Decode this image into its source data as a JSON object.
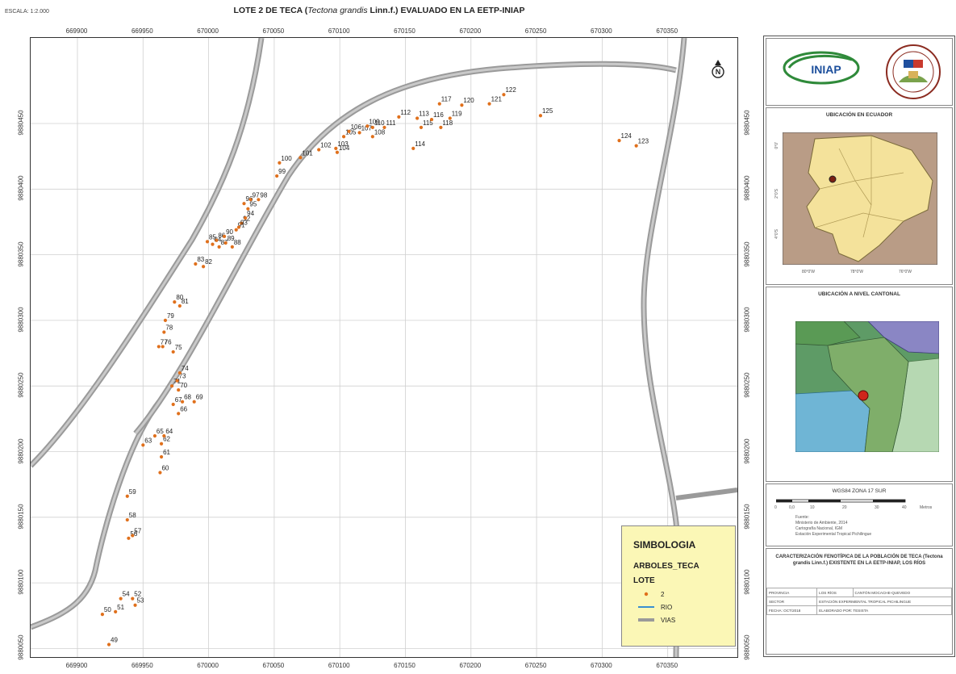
{
  "header": {
    "scale": "ESCALA: 1:2.000",
    "title_pre": "LOTE 2 DE TECA (",
    "title_species": "Tectona grandis",
    "title_post": " Linn.f.) EVALUADO EN LA EETP-INIAP"
  },
  "map": {
    "x_ticks": [
      "669900",
      "669950",
      "670000",
      "670050",
      "670100",
      "670150",
      "670200",
      "670250",
      "670300",
      "670350"
    ],
    "y_ticks": [
      "9880450",
      "9880400",
      "9880350",
      "9880300",
      "9880250",
      "9880200",
      "9880150",
      "9880100",
      "9880050"
    ],
    "north_symbol": "N",
    "trees": [
      {
        "id": "49",
        "x": 669924,
        "y": 9880053
      },
      {
        "id": "50",
        "x": 669919,
        "y": 9880076
      },
      {
        "id": "51",
        "x": 669929,
        "y": 9880078
      },
      {
        "id": "52",
        "x": 669942,
        "y": 9880088
      },
      {
        "id": "53",
        "x": 669944,
        "y": 9880083
      },
      {
        "id": "54",
        "x": 669933,
        "y": 9880088
      },
      {
        "id": "56",
        "x": 669939,
        "y": 9880134
      },
      {
        "id": "57",
        "x": 669942,
        "y": 9880136
      },
      {
        "id": "58",
        "x": 669938,
        "y": 9880148
      },
      {
        "id": "59",
        "x": 669938,
        "y": 9880166
      },
      {
        "id": "60",
        "x": 669963,
        "y": 9880184
      },
      {
        "id": "61",
        "x": 669964,
        "y": 9880196
      },
      {
        "id": "62",
        "x": 669964,
        "y": 9880206
      },
      {
        "id": "63",
        "x": 669950,
        "y": 9880205
      },
      {
        "id": "64",
        "x": 669966,
        "y": 9880212
      },
      {
        "id": "65",
        "x": 669959,
        "y": 9880212
      },
      {
        "id": "66",
        "x": 669977,
        "y": 9880229
      },
      {
        "id": "67",
        "x": 669973,
        "y": 9880236
      },
      {
        "id": "68",
        "x": 669980,
        "y": 9880238
      },
      {
        "id": "69",
        "x": 669989,
        "y": 9880238
      },
      {
        "id": "70",
        "x": 669977,
        "y": 9880247
      },
      {
        "id": "71",
        "x": 669972,
        "y": 9880250
      },
      {
        "id": "73",
        "x": 669976,
        "y": 9880254
      },
      {
        "id": "74",
        "x": 669978,
        "y": 9880260
      },
      {
        "id": "75",
        "x": 669973,
        "y": 9880276
      },
      {
        "id": "76",
        "x": 669965,
        "y": 9880280
      },
      {
        "id": "77",
        "x": 669962,
        "y": 9880280
      },
      {
        "id": "78",
        "x": 669966,
        "y": 9880291
      },
      {
        "id": "79",
        "x": 669967,
        "y": 9880300
      },
      {
        "id": "80",
        "x": 669974,
        "y": 9880314
      },
      {
        "id": "81",
        "x": 669978,
        "y": 9880311
      },
      {
        "id": "82",
        "x": 669996,
        "y": 9880341
      },
      {
        "id": "83",
        "x": 669990,
        "y": 9880343
      },
      {
        "id": "84",
        "x": 670003,
        "y": 9880358
      },
      {
        "id": "85",
        "x": 669999,
        "y": 9880360
      },
      {
        "id": "86",
        "x": 670006,
        "y": 9880361
      },
      {
        "id": "87",
        "x": 670008,
        "y": 9880356
      },
      {
        "id": "88",
        "x": 670018,
        "y": 9880356
      },
      {
        "id": "89",
        "x": 670013,
        "y": 9880359
      },
      {
        "id": "90",
        "x": 670012,
        "y": 9880364
      },
      {
        "id": "91",
        "x": 670021,
        "y": 9880369
      },
      {
        "id": "92",
        "x": 670025,
        "y": 9880374
      },
      {
        "id": "93",
        "x": 670023,
        "y": 9880371
      },
      {
        "id": "94",
        "x": 670028,
        "y": 9880378
      },
      {
        "id": "95",
        "x": 670030,
        "y": 9880385
      },
      {
        "id": "96",
        "x": 670027,
        "y": 9880389
      },
      {
        "id": "97",
        "x": 670032,
        "y": 9880392
      },
      {
        "id": "98",
        "x": 670038,
        "y": 9880392
      },
      {
        "id": "99",
        "x": 670052,
        "y": 9880410
      },
      {
        "id": "100",
        "x": 670054,
        "y": 9880420
      },
      {
        "id": "101",
        "x": 670070,
        "y": 9880424
      },
      {
        "id": "102",
        "x": 670084,
        "y": 9880430
      },
      {
        "id": "103",
        "x": 670097,
        "y": 9880431
      },
      {
        "id": "104",
        "x": 670098,
        "y": 9880428
      },
      {
        "id": "105",
        "x": 670103,
        "y": 9880440
      },
      {
        "id": "106",
        "x": 670107,
        "y": 9880444
      },
      {
        "id": "107",
        "x": 670115,
        "y": 9880443
      },
      {
        "id": "108",
        "x": 670125,
        "y": 9880440
      },
      {
        "id": "109",
        "x": 670121,
        "y": 9880448
      },
      {
        "id": "110",
        "x": 670125,
        "y": 9880447
      },
      {
        "id": "111",
        "x": 670134,
        "y": 9880447
      },
      {
        "id": "112",
        "x": 670145,
        "y": 9880455
      },
      {
        "id": "113",
        "x": 670159,
        "y": 9880454
      },
      {
        "id": "114",
        "x": 670156,
        "y": 9880431
      },
      {
        "id": "115",
        "x": 670162,
        "y": 9880447
      },
      {
        "id": "116",
        "x": 670170,
        "y": 9880453
      },
      {
        "id": "117",
        "x": 670176,
        "y": 9880465
      },
      {
        "id": "118",
        "x": 670177,
        "y": 9880447
      },
      {
        "id": "119",
        "x": 670184,
        "y": 9880454
      },
      {
        "id": "120",
        "x": 670193,
        "y": 9880464
      },
      {
        "id": "121",
        "x": 670214,
        "y": 9880465
      },
      {
        "id": "122",
        "x": 670225,
        "y": 9880472
      },
      {
        "id": "123",
        "x": 670326,
        "y": 9880433
      },
      {
        "id": "124",
        "x": 670313,
        "y": 9880437
      },
      {
        "id": "125",
        "x": 670253,
        "y": 9880456
      }
    ]
  },
  "legend": {
    "title": "SIMBOLOGIA",
    "layer1": "ARBOLES_TECA",
    "layer2": "LOTE",
    "item_point": "2",
    "item_river": "RIO",
    "item_roads": "VIAS",
    "colors": {
      "point": "#e0701c",
      "river": "#3a8fd0",
      "roads": "#9a9a9a",
      "legend_bg": "#fbf7b6"
    }
  },
  "panel": {
    "logo_text": "INIAP",
    "ecuador_title": "UBICACIÓN EN ECUADOR",
    "ecuador_lon_labels": [
      "80°0'W",
      "78°0'W",
      "76°0'W"
    ],
    "ecuador_lat_labels": [
      "0°0'",
      "2°0'S",
      "4°0'S"
    ],
    "cantonal_title": "UBICACIÓN A NIVEL CANTONAL",
    "datum": "WGS84 ZONA 17 SUR",
    "scale_bar_labels": [
      "0",
      "0,0",
      "10",
      "20",
      "30",
      "40"
    ],
    "scale_bar_unit": "Metros",
    "sources_title": "Fuente:",
    "sources_lines": [
      "Ministerio de Ambiente, 2014",
      "Cartografía Nacional, IGM",
      "Estación Experimental Tropical Pichilingue"
    ],
    "study_title": "CARACTERIZACIÓN FENOTÍPICA DE LA POBLACIÓN DE TECA (Tectona grandis Linn.f.) EXISTENTE EN LA EETP-INIAP, LOS RÍOS",
    "table_rows": [
      [
        "PROVINCIA",
        "LOS RÍOS",
        "CANTÓN MOCACHE-QUEVEDO"
      ],
      [
        "SECTOR",
        "ESTACIÓN EXPERIMENTAL TROPICAL PICHILINGUE"
      ],
      [
        "FECHA: OCT/2018",
        "ELABORADO POR: TESISTA"
      ]
    ]
  }
}
